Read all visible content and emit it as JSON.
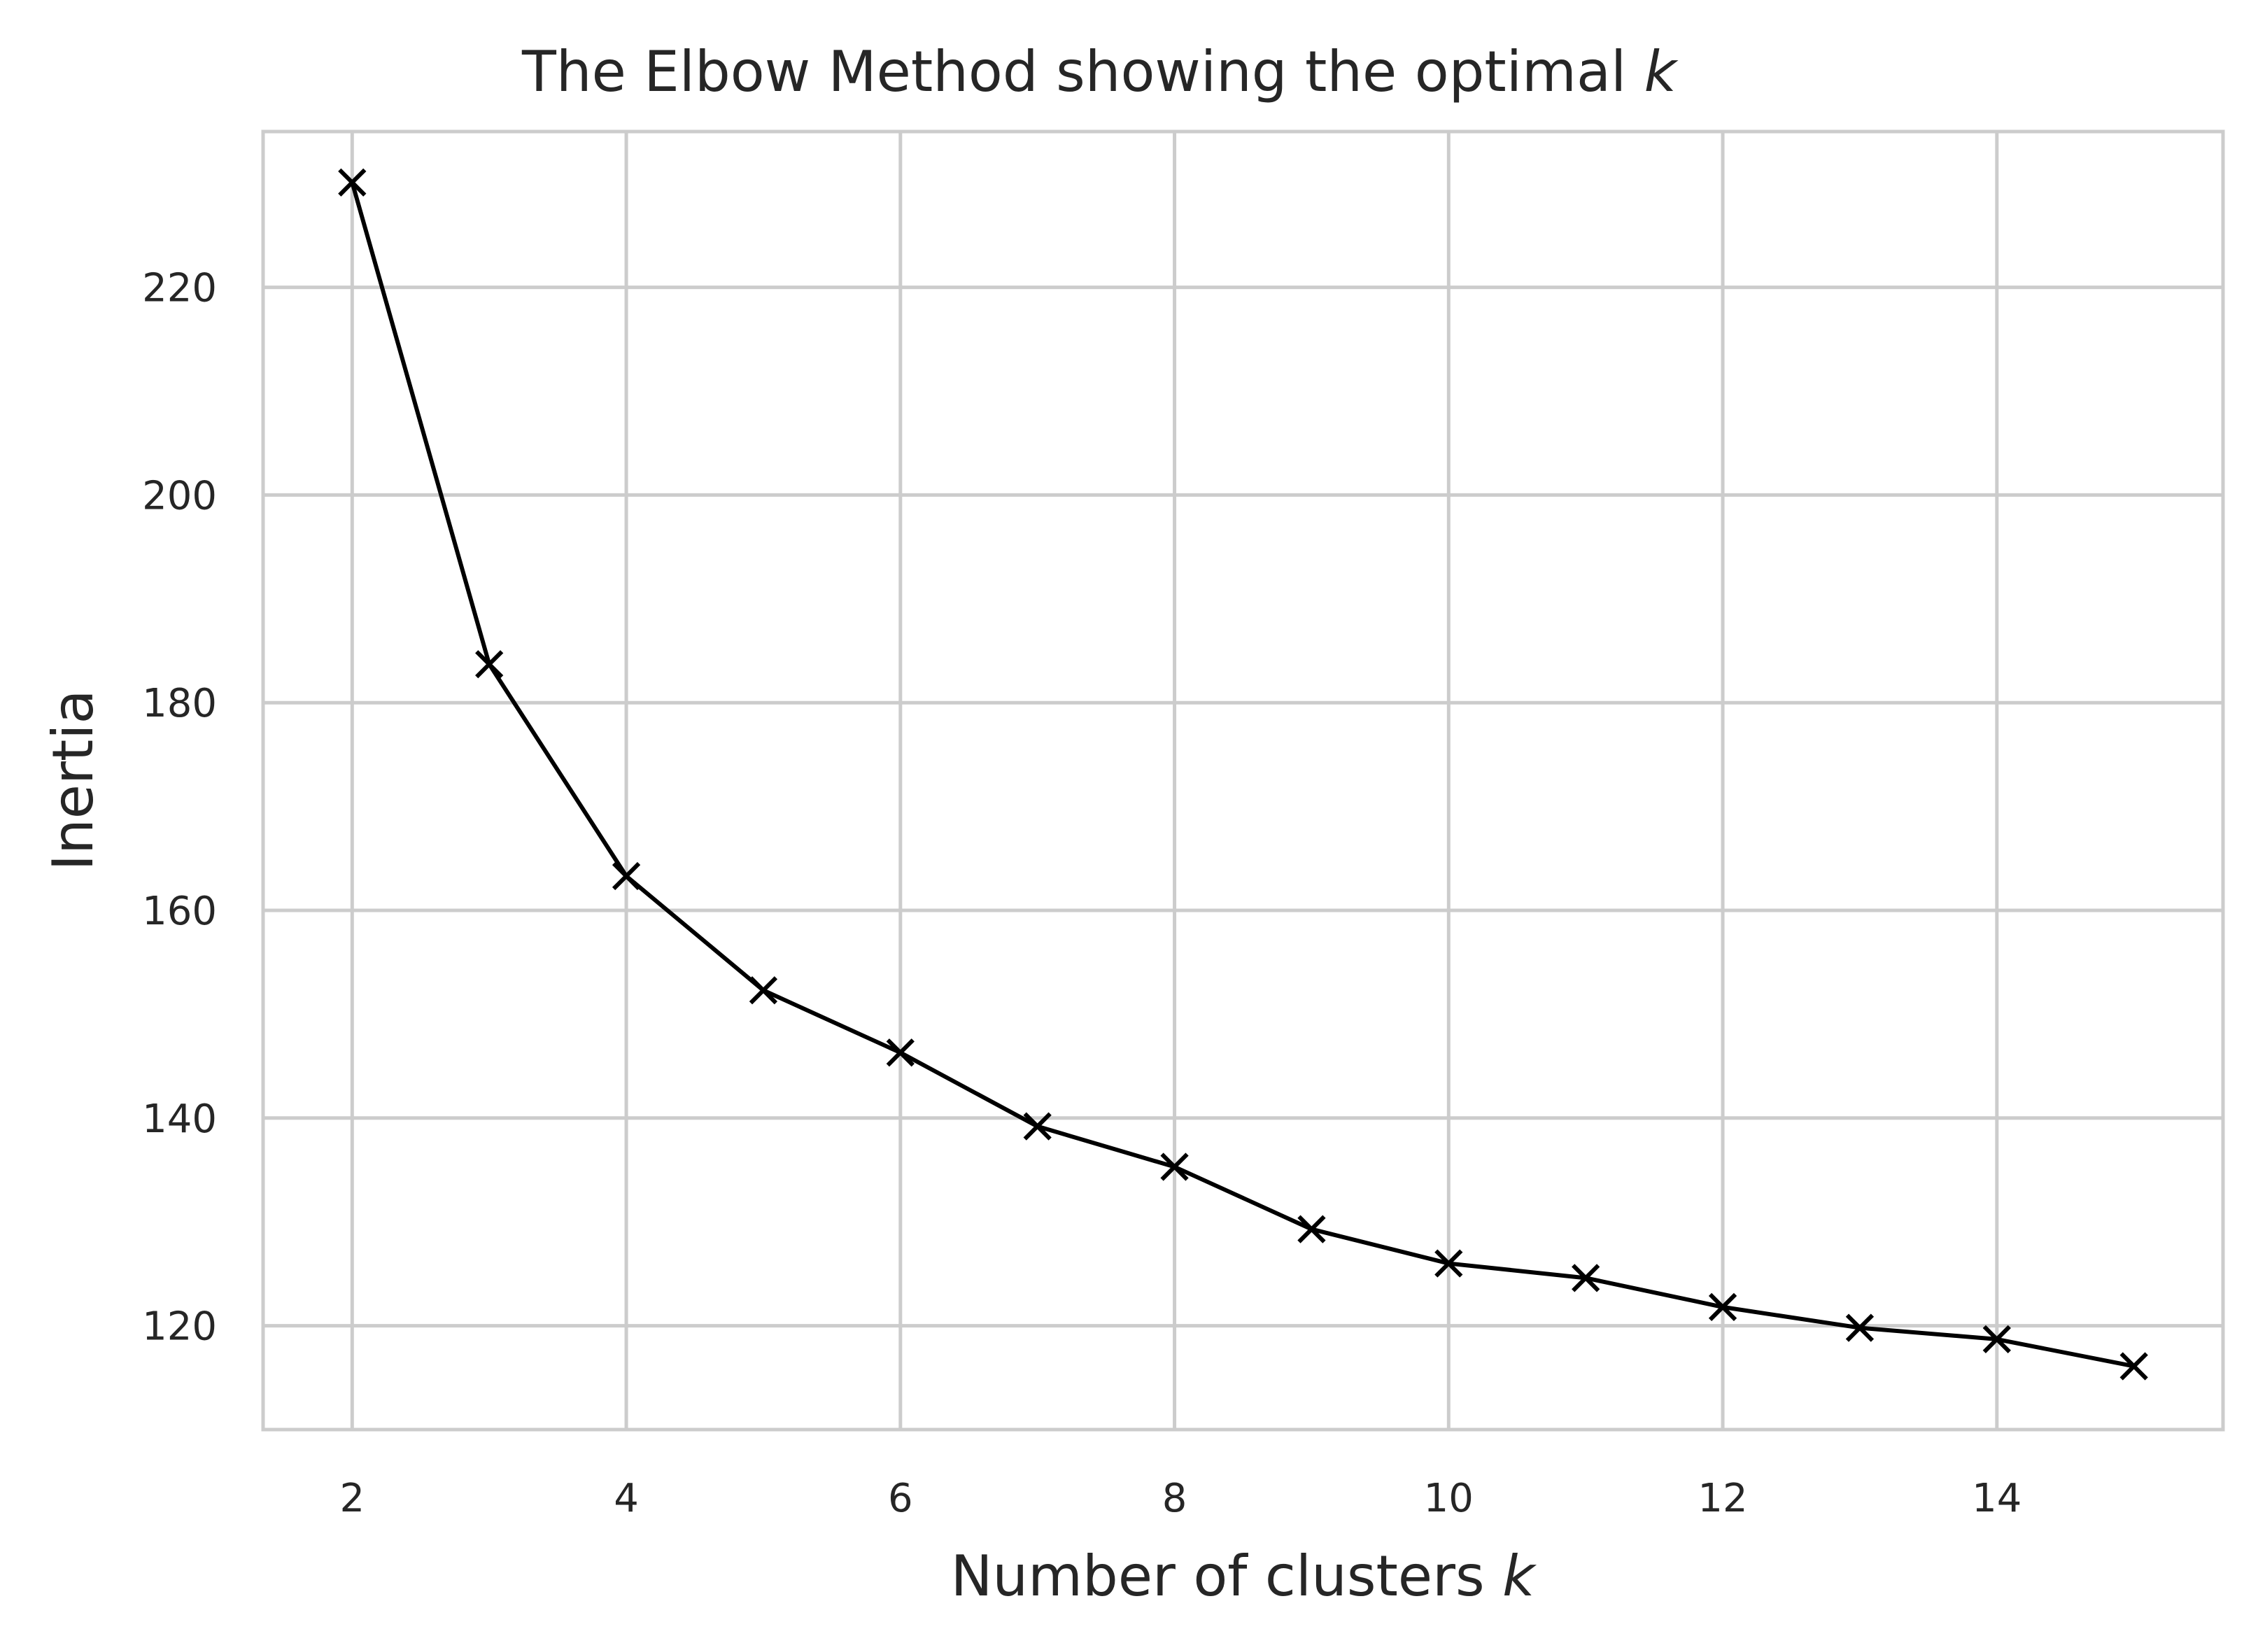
{
  "chart_data": {
    "type": "line",
    "title": "The Elbow Method showing the optimal",
    "title_math": "k",
    "xlabel": "Number of clusters",
    "xlabel_math": "k",
    "ylabel": "Inertia",
    "xlim": [
      1.35,
      15.65
    ],
    "ylim": [
      110,
      235
    ],
    "xticks": [
      2,
      4,
      6,
      8,
      10,
      12,
      14
    ],
    "yticks": [
      120,
      140,
      160,
      180,
      200,
      220
    ],
    "grid": true,
    "marker": "x",
    "colors": {
      "series": "#000000",
      "grid": "#cccccc",
      "text": "#262626",
      "background": "#ffffff"
    },
    "x": [
      2,
      3,
      4,
      5,
      6,
      7,
      8,
      9,
      10,
      11,
      12,
      13,
      14,
      15
    ],
    "y": [
      230.1,
      183.7,
      163.3,
      152.3,
      146.3,
      139.2,
      135.3,
      129.3,
      126.0,
      124.6,
      121.8,
      119.8,
      118.7,
      116.1
    ]
  }
}
